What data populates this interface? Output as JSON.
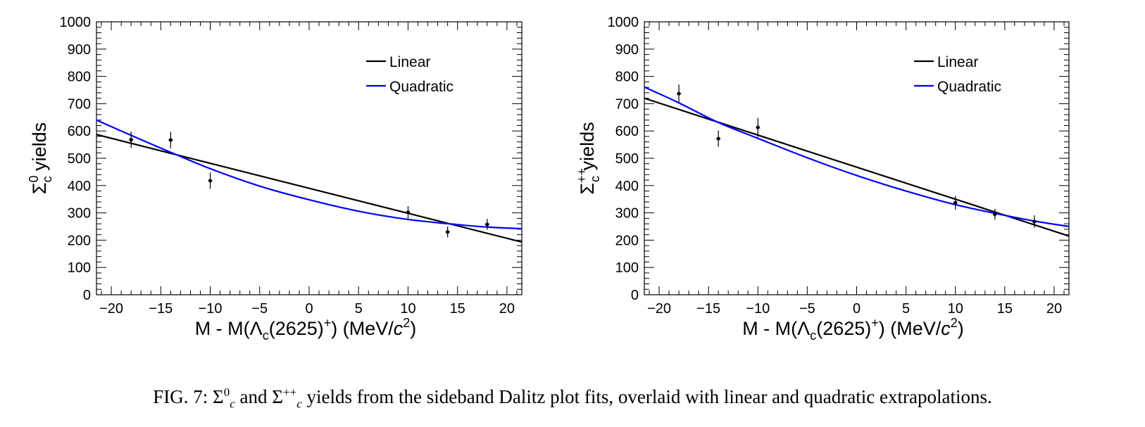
{
  "caption": {
    "fig_label": "FIG. 7:",
    "sym_sigma": "Σ",
    "sym_c": "c",
    "sym_zero": "0",
    "sym_pp": "++",
    "word_and": "and",
    "text": "yields from the sideband Dalitz plot fits, overlaid with linear and quadratic extrapolations."
  },
  "chart_data": [
    {
      "type": "scatter",
      "ylabel_symbol": "Σ",
      "ylabel_sub": "c",
      "ylabel_sup": "0",
      "ylabel_text": "yields",
      "xlabel_pre": "M - M(Λ",
      "xlabel_sub": "c",
      "xlabel_mid": "(2625)",
      "xlabel_sup": "+",
      "xlabel_post": ") (MeV/",
      "xlabel_c": "c",
      "xlabel_sq": "2",
      "xlabel_close": ")",
      "xlim": [
        -21.5,
        21.5
      ],
      "ylim": [
        0,
        1000
      ],
      "xticks": [
        -20,
        -15,
        -10,
        -5,
        0,
        5,
        10,
        15,
        20
      ],
      "xtick_labels": [
        "−20",
        "−15",
        "−10",
        "−5",
        "0",
        "5",
        "10",
        "15",
        "20"
      ],
      "yticks": [
        0,
        100,
        200,
        300,
        400,
        500,
        600,
        700,
        800,
        900,
        1000
      ],
      "ytick_labels": [
        "0",
        "100",
        "200",
        "300",
        "400",
        "500",
        "600",
        "700",
        "800",
        "900",
        "1000"
      ],
      "points": {
        "x": [
          -18,
          -14,
          -10,
          10,
          14,
          18
        ],
        "y": [
          568,
          567,
          418,
          302,
          230,
          258
        ],
        "err": [
          30,
          30,
          30,
          23,
          20,
          20
        ]
      },
      "fits": [
        {
          "name": "Linear",
          "color": "#000000",
          "x": [
            -21.5,
            21.5
          ],
          "y": [
            587,
            193
          ]
        },
        {
          "name": "Quadratic",
          "color": "#0000ff",
          "x": [
            -21.5,
            -18,
            -14,
            -10,
            -5,
            0,
            5,
            10,
            15,
            18,
            21.5
          ],
          "y": [
            640,
            584,
            522,
            462,
            398,
            348,
            306,
            276,
            257,
            248,
            242
          ]
        }
      ],
      "legend_position": "top-right",
      "grid": false
    },
    {
      "type": "scatter",
      "ylabel_symbol": "Σ",
      "ylabel_sub": "c",
      "ylabel_sup": "++",
      "ylabel_text": "yields",
      "xlabel_pre": "M - M(Λ",
      "xlabel_sub": "c",
      "xlabel_mid": "(2625)",
      "xlabel_sup": "+",
      "xlabel_post": ") (MeV/",
      "xlabel_c": "c",
      "xlabel_sq": "2",
      "xlabel_close": ")",
      "xlim": [
        -21.5,
        21.5
      ],
      "ylim": [
        0,
        1000
      ],
      "xticks": [
        -20,
        -15,
        -10,
        -5,
        0,
        5,
        10,
        15,
        20
      ],
      "xtick_labels": [
        "−20",
        "−15",
        "−10",
        "−5",
        "0",
        "5",
        "10",
        "15",
        "20"
      ],
      "yticks": [
        0,
        100,
        200,
        300,
        400,
        500,
        600,
        700,
        800,
        900,
        1000
      ],
      "ytick_labels": [
        "0",
        "100",
        "200",
        "300",
        "400",
        "500",
        "600",
        "700",
        "800",
        "900",
        "1000"
      ],
      "points": {
        "x": [
          -18,
          -14,
          -10,
          10,
          14,
          18
        ],
        "y": [
          737,
          572,
          613,
          337,
          295,
          268
        ],
        "err": [
          33,
          30,
          35,
          25,
          20,
          23
        ]
      },
      "fits": [
        {
          "name": "Linear",
          "color": "#000000",
          "x": [
            -21.5,
            21.5
          ],
          "y": [
            720,
            215
          ]
        },
        {
          "name": "Quadratic",
          "color": "#0000ff",
          "x": [
            -21.5,
            -18,
            -14,
            -10,
            -5,
            0,
            5,
            10,
            15,
            18,
            21.5
          ],
          "y": [
            761,
            703,
            631,
            573,
            502,
            437,
            380,
            330,
            291,
            270,
            250
          ]
        }
      ],
      "legend_position": "top-right",
      "grid": false
    }
  ]
}
